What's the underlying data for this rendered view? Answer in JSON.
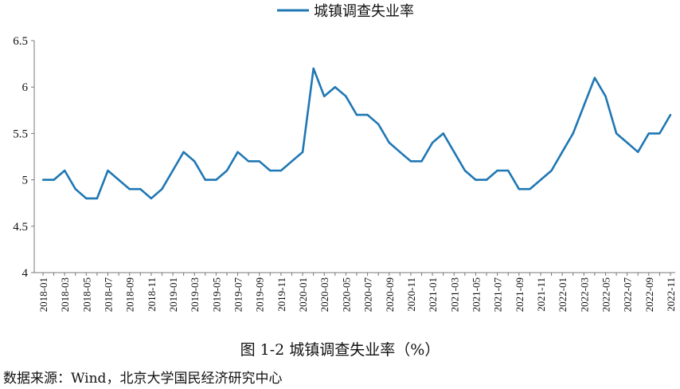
{
  "chart_data": {
    "type": "line",
    "title": "",
    "xlabel": "",
    "ylabel": "",
    "ylim": [
      4,
      6.5
    ],
    "yticks": [
      "4",
      "4.5",
      "5",
      "5.5",
      "6",
      "6.5"
    ],
    "grid": false,
    "legend_position": "top-center",
    "color": "#1f77b4",
    "x": [
      "2018-01",
      "2018-02",
      "2018-03",
      "2018-04",
      "2018-05",
      "2018-06",
      "2018-07",
      "2018-08",
      "2018-09",
      "2018-10",
      "2018-11",
      "2018-12",
      "2019-01",
      "2019-02",
      "2019-03",
      "2019-04",
      "2019-05",
      "2019-06",
      "2019-07",
      "2019-08",
      "2019-09",
      "2019-10",
      "2019-11",
      "2019-12",
      "2020-01",
      "2020-02",
      "2020-03",
      "2020-04",
      "2020-05",
      "2020-06",
      "2020-07",
      "2020-08",
      "2020-09",
      "2020-10",
      "2020-11",
      "2020-12",
      "2021-01",
      "2021-02",
      "2021-03",
      "2021-04",
      "2021-05",
      "2021-06",
      "2021-07",
      "2021-08",
      "2021-09",
      "2021-10",
      "2021-11",
      "2021-12",
      "2022-01",
      "2022-02",
      "2022-03",
      "2022-04",
      "2022-05",
      "2022-06",
      "2022-07",
      "2022-08",
      "2022-09",
      "2022-10",
      "2022-11"
    ],
    "series": [
      {
        "name": "城镇调查失业率",
        "values": [
          5.0,
          5.0,
          5.1,
          4.9,
          4.8,
          4.8,
          5.1,
          5.0,
          4.9,
          4.9,
          4.8,
          4.9,
          5.1,
          5.3,
          5.2,
          5.0,
          5.0,
          5.1,
          5.3,
          5.2,
          5.2,
          5.1,
          5.1,
          5.2,
          5.3,
          6.2,
          5.9,
          6.0,
          5.9,
          5.7,
          5.7,
          5.6,
          5.4,
          5.3,
          5.2,
          5.2,
          5.4,
          5.5,
          5.3,
          5.1,
          5.0,
          5.0,
          5.1,
          5.1,
          4.9,
          4.9,
          5.0,
          5.1,
          5.3,
          5.5,
          5.8,
          6.1,
          5.9,
          5.5,
          5.4,
          5.3,
          5.5,
          5.5,
          5.7
        ]
      }
    ]
  },
  "caption": "图 1-2 城镇调查失业率（%）",
  "source": "数据来源：Wind，北京大学国民经济研究中心"
}
